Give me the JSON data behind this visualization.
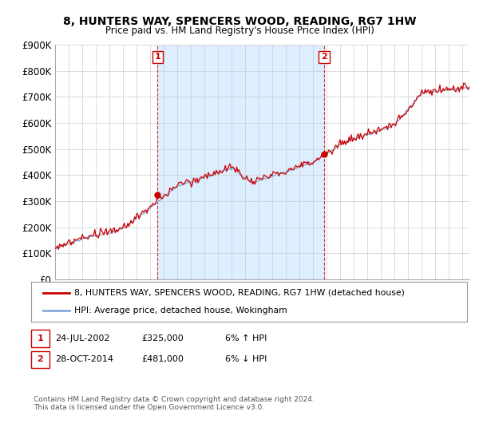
{
  "title": "8, HUNTERS WAY, SPENCERS WOOD, READING, RG7 1HW",
  "subtitle": "Price paid vs. HM Land Registry's House Price Index (HPI)",
  "ylim": [
    0,
    900000
  ],
  "yticks": [
    0,
    100000,
    200000,
    300000,
    400000,
    500000,
    600000,
    700000,
    800000,
    900000
  ],
  "ytick_labels": [
    "£0",
    "£100K",
    "£200K",
    "£300K",
    "£400K",
    "£500K",
    "£600K",
    "£700K",
    "£800K",
    "£900K"
  ],
  "xlim_start": 1995.0,
  "xlim_end": 2025.5,
  "line1_color": "#cc0000",
  "line2_color": "#88aadd",
  "shade_color": "#ddeeff",
  "vline_color": "#cc0000",
  "transaction1_year": 2002.55,
  "transaction2_year": 2014.81,
  "transaction1_price": 325000,
  "transaction2_price": 481000,
  "legend_line1": "8, HUNTERS WAY, SPENCERS WOOD, READING, RG7 1HW (detached house)",
  "legend_line2": "HPI: Average price, detached house, Wokingham",
  "footer": "Contains HM Land Registry data © Crown copyright and database right 2024.\nThis data is licensed under the Open Government Licence v3.0.",
  "background_color": "#ffffff",
  "plot_bg_color": "#ffffff",
  "grid_color": "#cccccc"
}
